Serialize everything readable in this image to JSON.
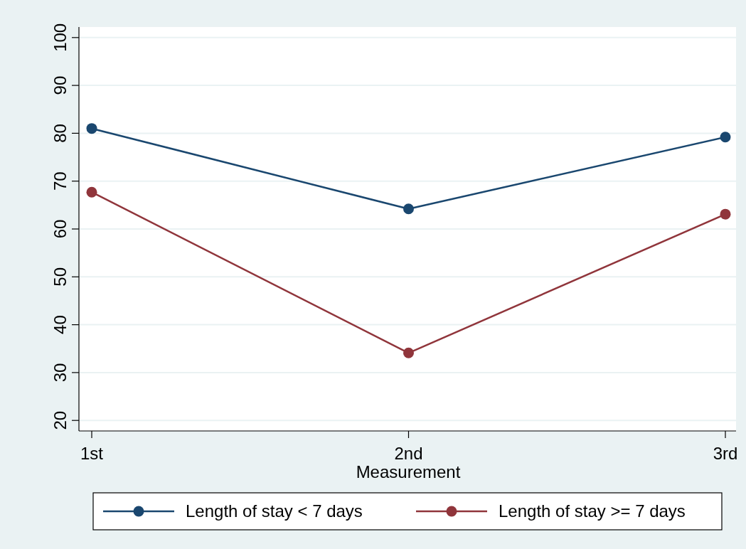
{
  "chart_data": {
    "type": "line",
    "xlabel": "Measurement",
    "categories": [
      "1st",
      "2nd",
      "3rd"
    ],
    "series": [
      {
        "name": "Length of stay < 7 days",
        "color": "#1a476f",
        "values": [
          81,
          64.2,
          79.2
        ]
      },
      {
        "name": "Length of stay >= 7 days",
        "color": "#90353b",
        "values": [
          67.7,
          34.1,
          63.1
        ]
      }
    ],
    "ylim": [
      17.8,
      102.2
    ],
    "yticks": [
      20,
      30,
      40,
      50,
      60,
      70,
      80,
      90,
      100
    ],
    "grid": "y",
    "legend": "bottom",
    "marker": "circle",
    "line_style": "solid"
  }
}
